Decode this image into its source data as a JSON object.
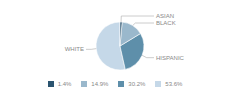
{
  "chart_data": {
    "type": "pie",
    "categories": [
      "WHITE",
      "HISPANIC",
      "BLACK",
      "ASIAN"
    ],
    "values": [
      53.6,
      30.2,
      14.9,
      1.4
    ],
    "value_labels": [
      "53.6%",
      "30.2%",
      "14.9%",
      "1.4%"
    ],
    "colors": [
      "#c5d8e8",
      "#5e8faa",
      "#9ab8cc",
      "#2b5470"
    ],
    "legend": "bottom"
  }
}
